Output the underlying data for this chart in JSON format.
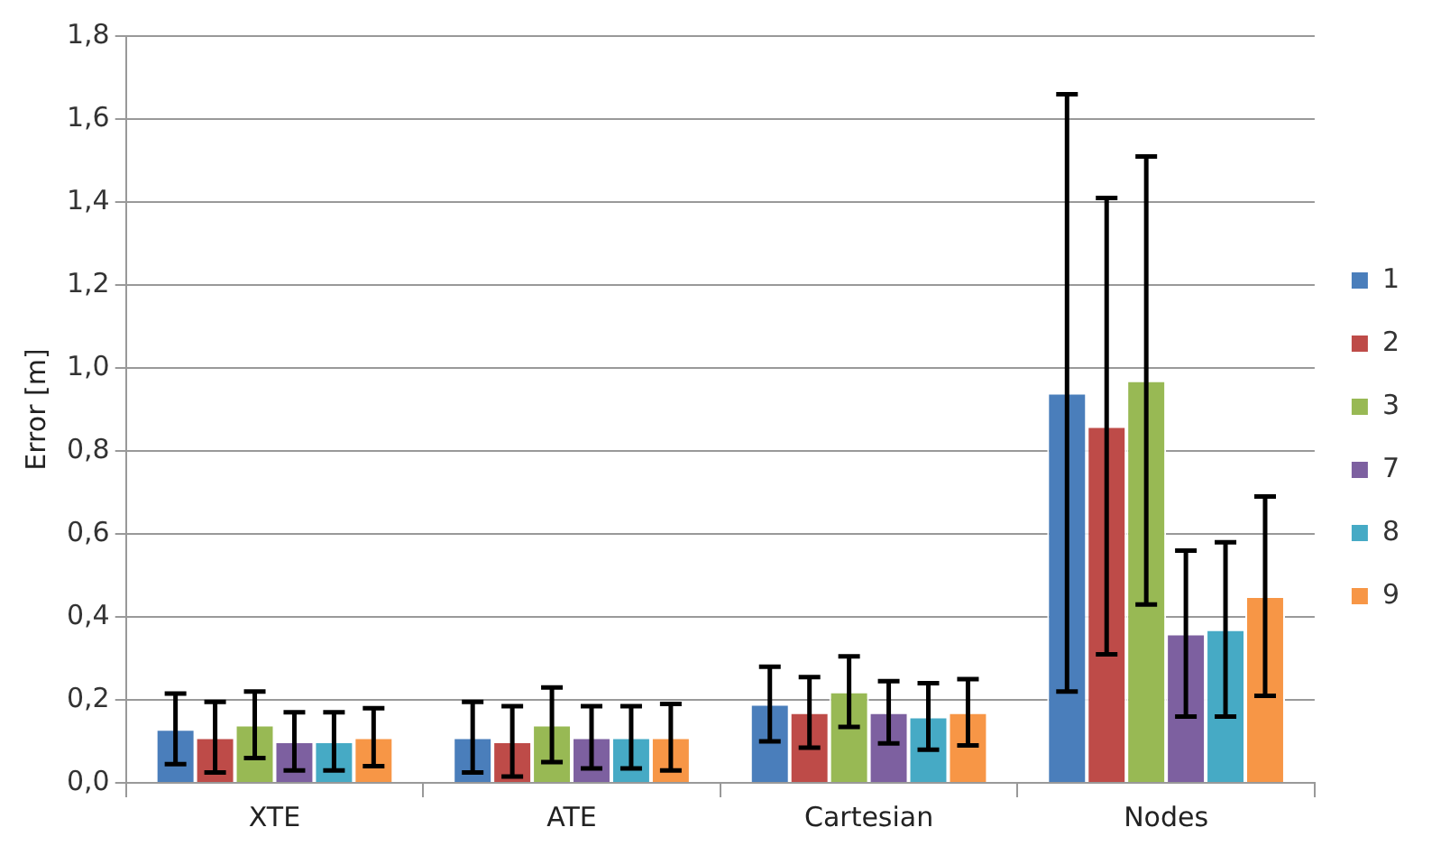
{
  "chart_data": {
    "type": "bar",
    "ylabel": "Error [m]",
    "categories": [
      "XTE",
      "ATE",
      "Cartesian",
      "Nodes"
    ],
    "series": [
      {
        "name": "1",
        "color": "#4a7ebb",
        "values": [
          0.13,
          0.11,
          0.19,
          0.94
        ],
        "errors": [
          0.085,
          0.085,
          0.09,
          0.72
        ]
      },
      {
        "name": "2",
        "color": "#be4b48",
        "values": [
          0.11,
          0.1,
          0.17,
          0.86
        ],
        "errors": [
          0.085,
          0.085,
          0.085,
          0.55
        ]
      },
      {
        "name": "3",
        "color": "#98b954",
        "values": [
          0.14,
          0.14,
          0.22,
          0.97
        ],
        "errors": [
          0.08,
          0.09,
          0.085,
          0.54
        ]
      },
      {
        "name": "7",
        "color": "#7d60a0",
        "values": [
          0.1,
          0.11,
          0.17,
          0.36
        ],
        "errors": [
          0.07,
          0.075,
          0.075,
          0.2
        ]
      },
      {
        "name": "8",
        "color": "#46aac5",
        "values": [
          0.1,
          0.11,
          0.16,
          0.37
        ],
        "errors": [
          0.07,
          0.075,
          0.08,
          0.21
        ]
      },
      {
        "name": "9",
        "color": "#f79646",
        "values": [
          0.11,
          0.11,
          0.17,
          0.45
        ],
        "errors": [
          0.07,
          0.08,
          0.08,
          0.24
        ]
      }
    ],
    "ylim": [
      0,
      1.8
    ],
    "yticks": [
      {
        "value": 0,
        "label": "0,0"
      },
      {
        "value": 0.2,
        "label": "0,2"
      },
      {
        "value": 0.4,
        "label": "0,4"
      },
      {
        "value": 0.6,
        "label": "0,6"
      },
      {
        "value": 0.8,
        "label": "0,8"
      },
      {
        "value": 1.0,
        "label": "1,0"
      },
      {
        "value": 1.2,
        "label": "1,2"
      },
      {
        "value": 1.4,
        "label": "1,4"
      },
      {
        "value": 1.6,
        "label": "1,6"
      },
      {
        "value": 1.8,
        "label": "1,8"
      }
    ],
    "grid": "y",
    "legend": "right"
  }
}
